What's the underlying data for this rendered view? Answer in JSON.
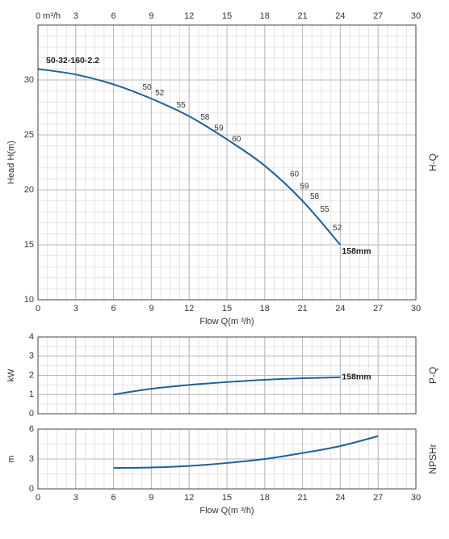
{
  "chart_data": [
    {
      "type": "line",
      "x_label": "Flow Q(m ³/h)",
      "y_label": "Head H(m)",
      "side_label": "H-Q",
      "xlim": [
        0,
        30
      ],
      "xticks": [
        0,
        3,
        6,
        9,
        12,
        15,
        18,
        21,
        24,
        27,
        30
      ],
      "top_xticks": [
        {
          "value": 0,
          "label": "0  m³/h"
        },
        3,
        6,
        9,
        12,
        15,
        18,
        21,
        24,
        27,
        30
      ],
      "ylim": [
        10,
        35
      ],
      "yticks": [
        10,
        15,
        20,
        25,
        30
      ],
      "grid": true,
      "series": [
        {
          "name": "50-32-160-2.2",
          "end_label": "158mm",
          "color": "#1f5f99",
          "x": [
            0,
            3,
            6,
            9,
            12,
            15,
            18,
            21,
            24
          ],
          "values": [
            31,
            30.5,
            29.6,
            28.3,
            26.7,
            24.6,
            22.2,
            19,
            15
          ]
        }
      ],
      "annotations": [
        {
          "text": "50",
          "x": 8.3,
          "y": 29.3
        },
        {
          "text": "52",
          "x": 9.3,
          "y": 28.8
        },
        {
          "text": "55",
          "x": 11,
          "y": 27.7
        },
        {
          "text": "58",
          "x": 12.9,
          "y": 26.6
        },
        {
          "text": "59",
          "x": 14,
          "y": 25.6
        },
        {
          "text": "60",
          "x": 15.4,
          "y": 24.6
        },
        {
          "text": "60",
          "x": 20,
          "y": 21.4
        },
        {
          "text": "59",
          "x": 20.8,
          "y": 20.3
        },
        {
          "text": "58",
          "x": 21.6,
          "y": 19.4
        },
        {
          "text": "55",
          "x": 22.4,
          "y": 18.2
        },
        {
          "text": "52",
          "x": 23.4,
          "y": 16.5
        }
      ]
    },
    {
      "type": "line",
      "y_label": "kW",
      "side_label": "P-Q",
      "xlim": [
        0,
        30
      ],
      "xticks": [
        0,
        3,
        6,
        9,
        12,
        15,
        18,
        21,
        24,
        27,
        30
      ],
      "show_xtick_labels": false,
      "ylim": [
        0,
        4
      ],
      "yticks": [
        0,
        1,
        2,
        3,
        4
      ],
      "grid": true,
      "series": [
        {
          "end_label": "158mm",
          "color": "#1f5f99",
          "x": [
            6,
            9,
            12,
            15,
            18,
            21,
            24
          ],
          "values": [
            1.0,
            1.3,
            1.5,
            1.65,
            1.77,
            1.85,
            1.9
          ]
        }
      ]
    },
    {
      "type": "line",
      "x_label": "Flow Q(m ³/h)",
      "y_label": "m",
      "side_label": "NPSHr",
      "xlim": [
        0,
        30
      ],
      "xticks": [
        0,
        3,
        6,
        9,
        12,
        15,
        18,
        21,
        24,
        27,
        30
      ],
      "ylim": [
        0,
        6
      ],
      "yticks": [
        0,
        3,
        6
      ],
      "grid": true,
      "series": [
        {
          "color": "#1f5f99",
          "x": [
            6,
            9,
            12,
            15,
            18,
            21,
            24,
            27
          ],
          "values": [
            2.1,
            2.15,
            2.3,
            2.6,
            3.0,
            3.6,
            4.3,
            5.3
          ]
        }
      ]
    }
  ]
}
